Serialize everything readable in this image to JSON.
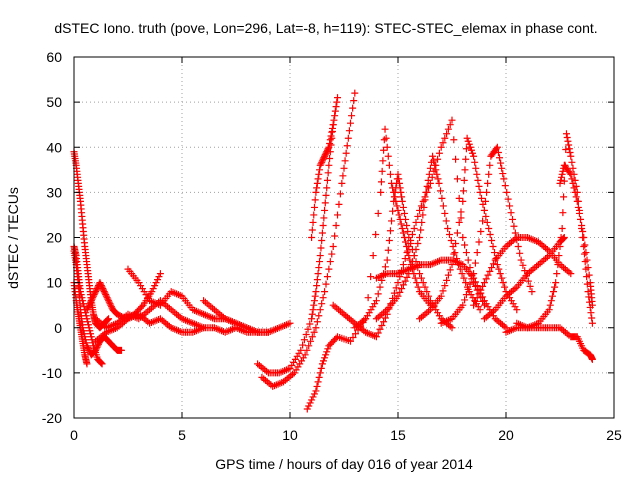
{
  "chart_data": {
    "type": "scatter",
    "title": "dSTEC Iono. truth (pove, Lon=296, Lat=-8, h=119): STEC-STEC_elemax in phase cont.",
    "xlabel": "GPS time / hours of day 016 of year 2014",
    "ylabel": "dSTEC  / TECUs",
    "xlim": [
      0,
      25
    ],
    "ylim": [
      -20,
      60
    ],
    "xticks": [
      0,
      5,
      10,
      15,
      20,
      25
    ],
    "yticks": [
      -20,
      -10,
      0,
      10,
      20,
      30,
      40,
      50,
      60
    ],
    "grid": true,
    "marker": "+",
    "colors": {
      "series": "#ff0000",
      "grid": "#a0a0a0",
      "axes": "#000000"
    },
    "series": [
      {
        "x": [
          0.0,
          0.1,
          0.2,
          0.3,
          0.4,
          0.5,
          0.6,
          0.7,
          0.8,
          0.9,
          1.0,
          1.2,
          1.4,
          1.6
        ],
        "y": [
          39,
          36,
          32,
          28,
          23,
          18,
          14,
          10,
          6,
          3,
          1,
          0,
          1,
          2
        ]
      },
      {
        "x": [
          0.0,
          0.1,
          0.2,
          0.3,
          0.5,
          0.7,
          0.9,
          1.1,
          1.3
        ],
        "y": [
          18,
          16,
          12,
          8,
          4,
          0,
          -4,
          -7,
          -8
        ]
      },
      {
        "x": [
          0.0,
          0.1,
          0.2,
          0.3,
          0.4,
          0.6,
          0.8,
          1.0,
          1.2,
          1.4,
          1.6,
          1.8,
          2.0,
          2.2
        ],
        "y": [
          17,
          14,
          10,
          4,
          0,
          -4,
          -6,
          -5,
          -3,
          -2,
          -3,
          -4,
          -5,
          -5
        ]
      },
      {
        "x": [
          0.0,
          0.1,
          0.2,
          0.3,
          0.4,
          0.5,
          0.6
        ],
        "y": [
          10,
          6,
          3,
          0,
          -3,
          -6,
          -8
        ]
      },
      {
        "x": [
          0.6,
          0.8,
          1.0,
          1.2,
          1.4,
          1.6,
          1.8,
          2.0,
          2.4,
          2.8,
          3.2,
          3.6,
          4.0
        ],
        "y": [
          4,
          6,
          8,
          10,
          8,
          6,
          4,
          3,
          2,
          3,
          5,
          8,
          12
        ]
      },
      {
        "x": [
          1.0,
          1.5,
          2.0,
          2.5,
          3.0,
          3.5,
          4.0,
          4.5,
          5.0,
          5.5,
          6.0,
          6.5,
          7.0,
          7.5,
          8.0,
          8.5
        ],
        "y": [
          2,
          0,
          1,
          3,
          2,
          4,
          6,
          4,
          2,
          1,
          0,
          0,
          -1,
          0,
          -1,
          -1
        ]
      },
      {
        "x": [
          2.5,
          3.0,
          3.5,
          4.0,
          4.5,
          5.0,
          5.5,
          6.0,
          6.5,
          7.0,
          7.5,
          8.0,
          8.5,
          9.0
        ],
        "y": [
          13,
          10,
          6,
          5,
          8,
          7,
          4,
          3,
          2,
          2,
          1,
          0,
          -1,
          -1
        ]
      },
      {
        "x": [
          1.0,
          1.5,
          2.0,
          2.5,
          3.0,
          3.5,
          4.0,
          4.5,
          5.0,
          5.5,
          6.0
        ],
        "y": [
          -3,
          -1,
          0,
          2,
          3,
          1,
          2,
          0,
          -1,
          -1,
          0
        ]
      },
      {
        "x": [
          6.0,
          6.5,
          7.0,
          7.5,
          8.0,
          8.5,
          9.0,
          9.5,
          10.0
        ],
        "y": [
          6,
          4,
          2,
          1,
          0,
          -1,
          -1,
          0,
          1
        ]
      },
      {
        "x": [
          8.5,
          9.0,
          9.5,
          10.0,
          10.5,
          11.0,
          11.2,
          11.4,
          11.6,
          11.8,
          12.0,
          12.2
        ],
        "y": [
          -8,
          -10,
          -10,
          -9,
          -5,
          2,
          8,
          16,
          26,
          36,
          45,
          51
        ]
      },
      {
        "x": [
          8.7,
          9.2,
          9.7,
          10.2,
          10.7,
          11.2,
          11.6,
          12.0,
          12.4,
          12.7,
          13.0
        ],
        "y": [
          -11,
          -13,
          -12,
          -10,
          -6,
          0,
          8,
          18,
          32,
          42,
          52
        ]
      },
      {
        "x": [
          10.8,
          11.2,
          11.5,
          11.8,
          12.2,
          12.8,
          13.5,
          14.2,
          14.4,
          14.7,
          15.0,
          15.3,
          15.6,
          16.0,
          16.5
        ],
        "y": [
          -18,
          -14,
          -8,
          -4,
          -2,
          -3,
          2,
          30,
          44,
          32,
          26,
          20,
          14,
          8,
          5
        ]
      },
      {
        "x": [
          11.0,
          11.2,
          11.4,
          11.6,
          11.8,
          12.0
        ],
        "y": [
          20,
          30,
          36,
          38,
          40,
          45
        ]
      },
      {
        "x": [
          12.0,
          12.5,
          13.0,
          13.5,
          14.0,
          14.5,
          15.0,
          15.5,
          16.0,
          16.5,
          17.0,
          17.5,
          18.0,
          18.5,
          19.0
        ],
        "y": [
          5,
          3,
          1,
          -1,
          -2,
          3,
          10,
          18,
          26,
          32,
          40,
          46,
          20,
          10,
          5
        ]
      },
      {
        "x": [
          13.0,
          13.5,
          14.0,
          14.5,
          14.8,
          15.0,
          15.2,
          15.5,
          16.0,
          16.5,
          17.0,
          17.5
        ],
        "y": [
          0,
          2,
          6,
          15,
          28,
          34,
          28,
          20,
          12,
          6,
          2,
          0
        ]
      },
      {
        "x": [
          14.0,
          14.5,
          15.0,
          15.5,
          16.0,
          16.3,
          16.6,
          16.9,
          17.3,
          17.8,
          18.3,
          18.8
        ],
        "y": [
          2,
          4,
          7,
          12,
          20,
          30,
          38,
          32,
          22,
          14,
          8,
          4
        ]
      },
      {
        "x": [
          14.0,
          14.5,
          15.0,
          15.5,
          16.0,
          16.5,
          17.0,
          17.5,
          18.0,
          18.5,
          19.0,
          19.5,
          20.0
        ],
        "y": [
          11,
          12,
          12,
          13,
          14,
          14,
          15,
          15,
          14,
          11,
          6,
          2,
          0
        ]
      },
      {
        "x": [
          16.0,
          16.5,
          17.0,
          17.5,
          18.0,
          18.2,
          18.5,
          18.8,
          19.2,
          19.6,
          20.0,
          20.5
        ],
        "y": [
          2,
          4,
          7,
          14,
          28,
          42,
          38,
          30,
          22,
          14,
          8,
          4
        ]
      },
      {
        "x": [
          17.0,
          17.5,
          18.0,
          18.5,
          19.0,
          19.3,
          19.6,
          19.9,
          20.3,
          20.7,
          21.2
        ],
        "y": [
          1,
          2,
          5,
          12,
          26,
          38,
          40,
          33,
          24,
          15,
          8
        ]
      },
      {
        "x": [
          18.5,
          19.0,
          19.5,
          20.0,
          20.5,
          21.0,
          21.5,
          22.0,
          22.5,
          23.0
        ],
        "y": [
          5,
          10,
          15,
          18,
          20,
          20,
          19,
          17,
          14,
          12
        ]
      },
      {
        "x": [
          19.0,
          19.5,
          20.0,
          20.5,
          21.0,
          21.5,
          22.0,
          22.5,
          22.7
        ],
        "y": [
          2,
          4,
          7,
          9,
          12,
          14,
          16,
          19,
          20
        ]
      },
      {
        "x": [
          20.0,
          20.5,
          21.0,
          21.5,
          22.0,
          22.3,
          22.6,
          22.8,
          23.0,
          23.3,
          23.6,
          23.8,
          24.0
        ],
        "y": [
          -1,
          0,
          0,
          1,
          4,
          10,
          22,
          43,
          38,
          30,
          18,
          8,
          1
        ]
      },
      {
        "x": [
          20.5,
          21.0,
          21.5,
          22.0,
          22.5,
          23.0,
          23.3,
          23.6,
          23.9,
          24.0
        ],
        "y": [
          1,
          0,
          0,
          0,
          0,
          -2,
          -2,
          -5,
          -6,
          -7
        ]
      },
      {
        "x": [
          22.5,
          22.7,
          23.0,
          23.3,
          23.6,
          23.9,
          24.0
        ],
        "y": [
          32,
          36,
          34,
          28,
          20,
          10,
          5
        ]
      }
    ]
  }
}
